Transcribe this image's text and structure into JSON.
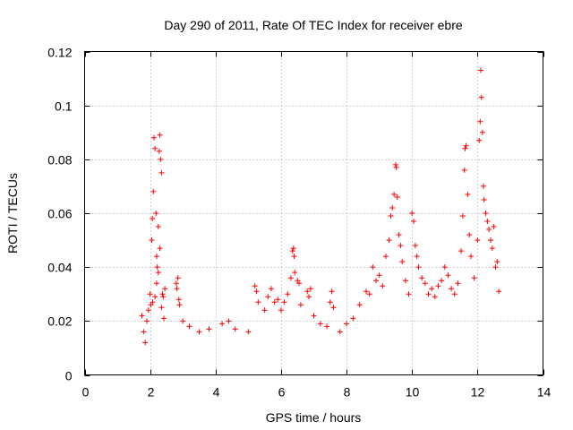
{
  "chart_data": {
    "type": "scatter",
    "title": "Day 290 of 2011, Rate Of TEC Index for receiver ebre",
    "xlabel": "GPS time / hours",
    "ylabel": "ROTI / TECUs",
    "xlim": [
      0,
      14
    ],
    "ylim": [
      0,
      0.12
    ],
    "x_ticks": [
      0,
      2,
      4,
      6,
      8,
      10,
      12,
      14
    ],
    "x_tick_labels": [
      "0",
      "2",
      "4",
      "6",
      "8",
      "10",
      "12",
      "14"
    ],
    "y_ticks": [
      0,
      0.02,
      0.04,
      0.06,
      0.08,
      0.1,
      0.12
    ],
    "y_tick_labels": [
      "0",
      "0.02",
      "0.04",
      "0.06",
      "0.08",
      "0.1",
      "0.12"
    ],
    "grid": true,
    "marker": "+",
    "color": "#ff0000",
    "series": [
      {
        "name": "ROTI",
        "points": [
          [
            1.75,
            0.022
          ],
          [
            1.8,
            0.016
          ],
          [
            1.85,
            0.012
          ],
          [
            1.9,
            0.02
          ],
          [
            1.95,
            0.024
          ],
          [
            2.0,
            0.03
          ],
          [
            2.02,
            0.026
          ],
          [
            2.05,
            0.05
          ],
          [
            2.07,
            0.058
          ],
          [
            2.1,
            0.068
          ],
          [
            2.12,
            0.088
          ],
          [
            2.15,
            0.084
          ],
          [
            2.18,
            0.06
          ],
          [
            2.2,
            0.044
          ],
          [
            2.22,
            0.04
          ],
          [
            2.25,
            0.055
          ],
          [
            2.28,
            0.083
          ],
          [
            2.3,
            0.089
          ],
          [
            2.32,
            0.08
          ],
          [
            2.35,
            0.075
          ],
          [
            2.38,
            0.03
          ],
          [
            2.4,
            0.029
          ],
          [
            2.42,
            0.021
          ],
          [
            2.45,
            0.032
          ],
          [
            2.3,
            0.047
          ],
          [
            2.2,
            0.034
          ],
          [
            2.15,
            0.029
          ],
          [
            2.08,
            0.027
          ],
          [
            2.35,
            0.025
          ],
          [
            2.25,
            0.038
          ],
          [
            2.8,
            0.034
          ],
          [
            2.82,
            0.032
          ],
          [
            2.85,
            0.036
          ],
          [
            2.88,
            0.028
          ],
          [
            2.9,
            0.026
          ],
          [
            3.0,
            0.02
          ],
          [
            3.2,
            0.018
          ],
          [
            3.5,
            0.016
          ],
          [
            3.8,
            0.017
          ],
          [
            4.2,
            0.019
          ],
          [
            4.4,
            0.02
          ],
          [
            4.6,
            0.017
          ],
          [
            5.0,
            0.016
          ],
          [
            5.2,
            0.033
          ],
          [
            5.25,
            0.031
          ],
          [
            5.3,
            0.027
          ],
          [
            5.5,
            0.024
          ],
          [
            5.6,
            0.029
          ],
          [
            5.7,
            0.032
          ],
          [
            5.8,
            0.027
          ],
          [
            5.9,
            0.028
          ],
          [
            6.0,
            0.024
          ],
          [
            6.1,
            0.027
          ],
          [
            6.2,
            0.03
          ],
          [
            6.3,
            0.036
          ],
          [
            6.35,
            0.046
          ],
          [
            6.38,
            0.047
          ],
          [
            6.4,
            0.044
          ],
          [
            6.42,
            0.038
          ],
          [
            6.5,
            0.035
          ],
          [
            6.55,
            0.034
          ],
          [
            6.6,
            0.026
          ],
          [
            6.8,
            0.031
          ],
          [
            6.85,
            0.029
          ],
          [
            6.9,
            0.032
          ],
          [
            7.0,
            0.022
          ],
          [
            7.2,
            0.019
          ],
          [
            7.4,
            0.018
          ],
          [
            7.5,
            0.027
          ],
          [
            7.55,
            0.031
          ],
          [
            7.6,
            0.025
          ],
          [
            7.8,
            0.016
          ],
          [
            8.0,
            0.019
          ],
          [
            8.2,
            0.021
          ],
          [
            8.4,
            0.026
          ],
          [
            8.6,
            0.031
          ],
          [
            8.7,
            0.03
          ],
          [
            8.8,
            0.04
          ],
          [
            8.9,
            0.035
          ],
          [
            9.0,
            0.037
          ],
          [
            9.1,
            0.033
          ],
          [
            9.2,
            0.044
          ],
          [
            9.3,
            0.05
          ],
          [
            9.35,
            0.059
          ],
          [
            9.4,
            0.062
          ],
          [
            9.45,
            0.067
          ],
          [
            9.5,
            0.078
          ],
          [
            9.52,
            0.077
          ],
          [
            9.55,
            0.066
          ],
          [
            9.6,
            0.052
          ],
          [
            9.65,
            0.048
          ],
          [
            9.7,
            0.042
          ],
          [
            9.8,
            0.035
          ],
          [
            9.9,
            0.03
          ],
          [
            10.0,
            0.06
          ],
          [
            10.05,
            0.057
          ],
          [
            10.1,
            0.048
          ],
          [
            10.15,
            0.044
          ],
          [
            10.2,
            0.04
          ],
          [
            10.3,
            0.036
          ],
          [
            10.4,
            0.034
          ],
          [
            10.5,
            0.03
          ],
          [
            10.6,
            0.032
          ],
          [
            10.7,
            0.029
          ],
          [
            10.8,
            0.033
          ],
          [
            10.9,
            0.035
          ],
          [
            11.0,
            0.04
          ],
          [
            11.1,
            0.037
          ],
          [
            11.2,
            0.032
          ],
          [
            11.3,
            0.03
          ],
          [
            11.4,
            0.034
          ],
          [
            11.5,
            0.046
          ],
          [
            11.55,
            0.059
          ],
          [
            11.6,
            0.076
          ],
          [
            11.62,
            0.084
          ],
          [
            11.65,
            0.085
          ],
          [
            11.7,
            0.067
          ],
          [
            11.75,
            0.052
          ],
          [
            11.8,
            0.044
          ],
          [
            11.9,
            0.036
          ],
          [
            12.0,
            0.05
          ],
          [
            12.05,
            0.087
          ],
          [
            12.08,
            0.094
          ],
          [
            12.1,
            0.113
          ],
          [
            12.12,
            0.103
          ],
          [
            12.15,
            0.09
          ],
          [
            12.18,
            0.07
          ],
          [
            12.2,
            0.065
          ],
          [
            12.25,
            0.06
          ],
          [
            12.3,
            0.057
          ],
          [
            12.35,
            0.054
          ],
          [
            12.4,
            0.05
          ],
          [
            12.45,
            0.047
          ],
          [
            12.5,
            0.055
          ],
          [
            12.55,
            0.04
          ],
          [
            12.6,
            0.042
          ],
          [
            12.65,
            0.031
          ]
        ]
      }
    ]
  }
}
